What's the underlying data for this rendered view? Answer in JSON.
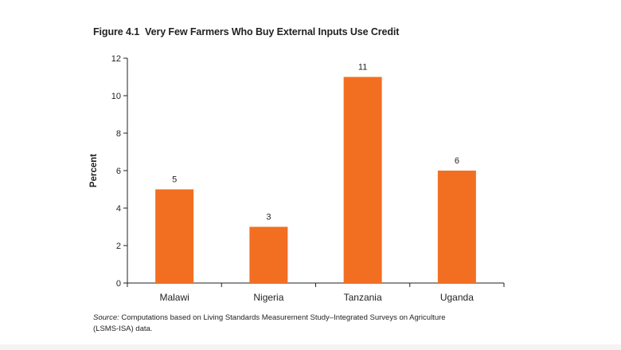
{
  "figure": {
    "number": "Figure 4.1",
    "title": "Very Few Farmers Who Buy External Inputs Use Credit"
  },
  "source": {
    "lead": "Source:",
    "text": " Computations based on Living Standards Measurement Study–Integrated Surveys on Agriculture (LSMS-ISA) data."
  },
  "colors": {
    "bar": "#f26f21",
    "axis": "#231f20"
  },
  "chart_data": {
    "type": "bar",
    "categories": [
      "Malawi",
      "Nigeria",
      "Tanzania",
      "Uganda"
    ],
    "values": [
      5,
      3,
      11,
      6
    ],
    "data_labels": [
      "5",
      "3",
      "11",
      "6"
    ],
    "xlabel": "",
    "ylabel": "Percent",
    "ylim": [
      0,
      12
    ],
    "yticks": [
      0,
      2,
      4,
      6,
      8,
      10,
      12
    ],
    "grid": false,
    "legend": "none"
  }
}
